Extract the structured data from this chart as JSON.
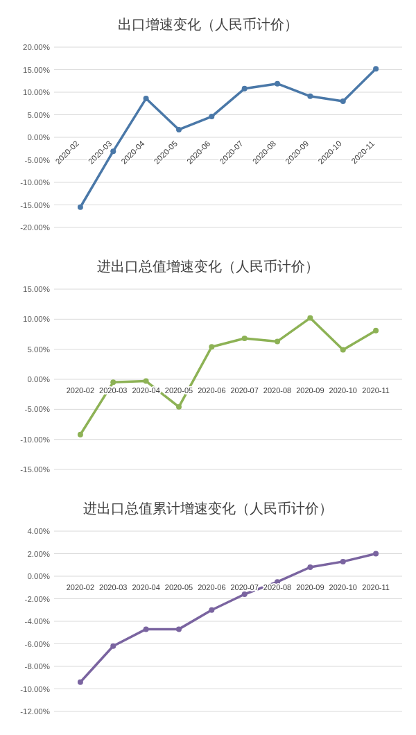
{
  "chart_data": [
    {
      "type": "line",
      "title": "出口增速变化（人民币计价）",
      "categories": [
        "2020-02",
        "2020-03",
        "2020-04",
        "2020-05",
        "2020-06",
        "2020-07",
        "2020-08",
        "2020-09",
        "2020-10",
        "2020-11"
      ],
      "series": [
        {
          "color": "#4a78a8",
          "values": [
            -15.5,
            -3.1,
            8.6,
            1.7,
            4.6,
            10.8,
            11.9,
            9.1,
            8.0,
            15.2
          ]
        }
      ],
      "ylim": [
        -20,
        20
      ],
      "yticks": [
        {
          "value": -20,
          "label": "-20.00%"
        },
        {
          "value": -15,
          "label": "-15.00%"
        },
        {
          "value": -10,
          "label": "-10.00%"
        },
        {
          "value": -5,
          "label": "-5.00%"
        },
        {
          "value": 0,
          "label": "0.00%"
        },
        {
          "value": 5,
          "label": "5.00%"
        },
        {
          "value": 10,
          "label": "10.00%"
        },
        {
          "value": 15,
          "label": "15.00%"
        },
        {
          "value": 20,
          "label": "20.00%"
        }
      ],
      "grid": "y",
      "marker": "circle",
      "line_style": "solid"
    },
    {
      "type": "line",
      "title": "进出口总值增速变化（人民币计价）",
      "categories": [
        "2020-02",
        "2020-03",
        "2020-04",
        "2020-05",
        "2020-06",
        "2020-07",
        "2020-08",
        "2020-09",
        "2020-10",
        "2020-11"
      ],
      "series": [
        {
          "color": "#8db255",
          "values": [
            -9.2,
            -0.5,
            -0.3,
            -4.6,
            5.4,
            6.8,
            6.3,
            10.2,
            4.9,
            8.1
          ]
        }
      ],
      "ylim": [
        -15,
        15
      ],
      "yticks": [
        {
          "value": -15,
          "label": "-15.00%"
        },
        {
          "value": -10,
          "label": "-10.00%"
        },
        {
          "value": -5,
          "label": "-5.00%"
        },
        {
          "value": 0,
          "label": "0.00%"
        },
        {
          "value": 5,
          "label": "5.00%"
        },
        {
          "value": 10,
          "label": "10.00%"
        },
        {
          "value": 15,
          "label": "15.00%"
        }
      ],
      "grid": "y",
      "marker": "circle",
      "line_style": "solid"
    },
    {
      "type": "line",
      "title": "进出口总值累计增速变化（人民币计价）",
      "categories": [
        "2020-02",
        "2020-03",
        "2020-04",
        "2020-05",
        "2020-06",
        "2020-07",
        "2020-08",
        "2020-09",
        "2020-10",
        "2020-11"
      ],
      "series": [
        {
          "color": "#7a64a0",
          "values": [
            -9.4,
            -6.2,
            -4.7,
            -4.7,
            -3.0,
            -1.6,
            -0.5,
            0.8,
            1.3,
            2.0
          ]
        }
      ],
      "ylim": [
        -12,
        4
      ],
      "yticks": [
        {
          "value": -12,
          "label": "-12.00%"
        },
        {
          "value": -10,
          "label": "-10.00%"
        },
        {
          "value": -8,
          "label": "-8.00%"
        },
        {
          "value": -6,
          "label": "-6.00%"
        },
        {
          "value": -4,
          "label": "-4.00%"
        },
        {
          "value": -2,
          "label": "-2.00%"
        },
        {
          "value": 0,
          "label": "0.00%"
        },
        {
          "value": 2,
          "label": "2.00%"
        },
        {
          "value": 4,
          "label": "4.00%"
        }
      ],
      "grid": "y",
      "marker": "circle",
      "line_style": "solid"
    }
  ]
}
